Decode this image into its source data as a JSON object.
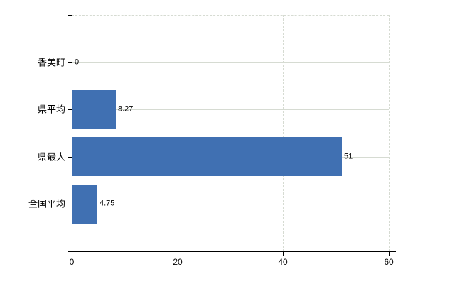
{
  "chart_data": {
    "type": "bar",
    "orientation": "horizontal",
    "title": "",
    "xlabel": "",
    "ylabel": "",
    "categories": [
      "香美町",
      "県平均",
      "県最大",
      "全国平均"
    ],
    "values": [
      0,
      8.27,
      51,
      4.75
    ],
    "value_labels": [
      "0",
      "8.27",
      "51",
      "4.75"
    ],
    "x_ticks": [
      0,
      20,
      40,
      60
    ],
    "x_tick_labels": [
      "0",
      "20",
      "40",
      "60"
    ],
    "xlim": [
      0,
      60
    ],
    "grid": true,
    "legend": false,
    "colors": {
      "bar": "#4070b2",
      "gridline": "#d6dbd2",
      "axis": "#000000",
      "text": "#000000",
      "background": "#ffffff"
    }
  }
}
